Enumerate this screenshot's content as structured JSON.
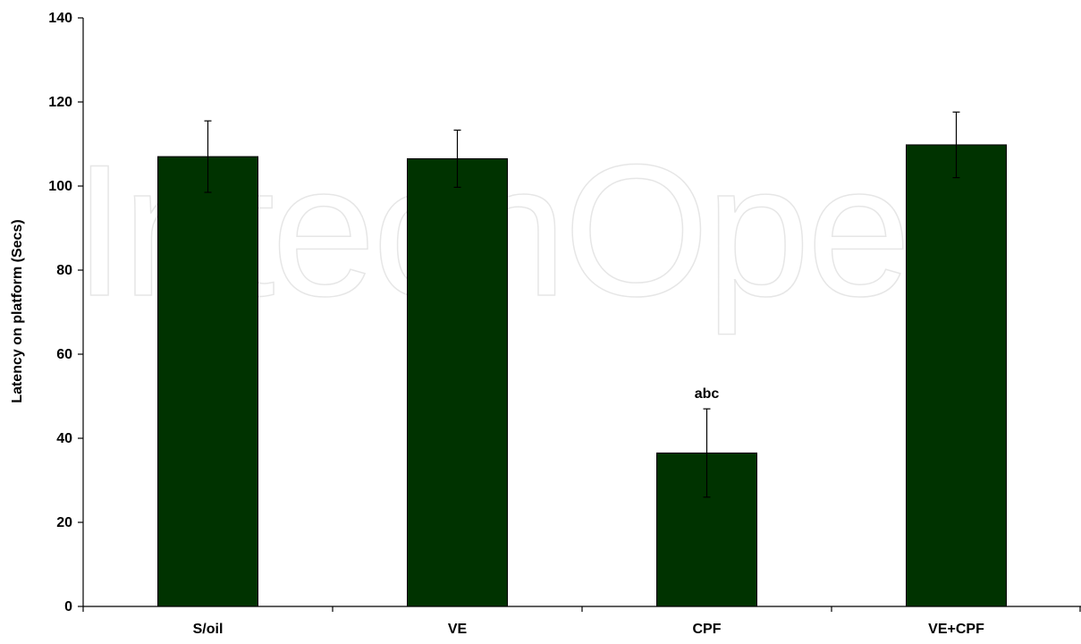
{
  "watermark": "IntechOpen",
  "chart_data": {
    "type": "bar",
    "categories": [
      "S/oil",
      "VE",
      "CPF",
      "VE+CPF"
    ],
    "values": [
      107,
      106.5,
      36.5,
      109.8
    ],
    "errors": [
      8.5,
      6.8,
      10.5,
      7.8
    ],
    "annotations": [
      "",
      "",
      "abc",
      ""
    ],
    "title": "",
    "xlabel": "",
    "ylabel": "Latency on platform (Secs)",
    "ylim": [
      0,
      140
    ],
    "yticks": [
      0,
      20,
      40,
      60,
      80,
      100,
      120,
      140
    ],
    "grid": false,
    "legend": "none",
    "bar_color": "#003300",
    "error_color": "#000000"
  }
}
